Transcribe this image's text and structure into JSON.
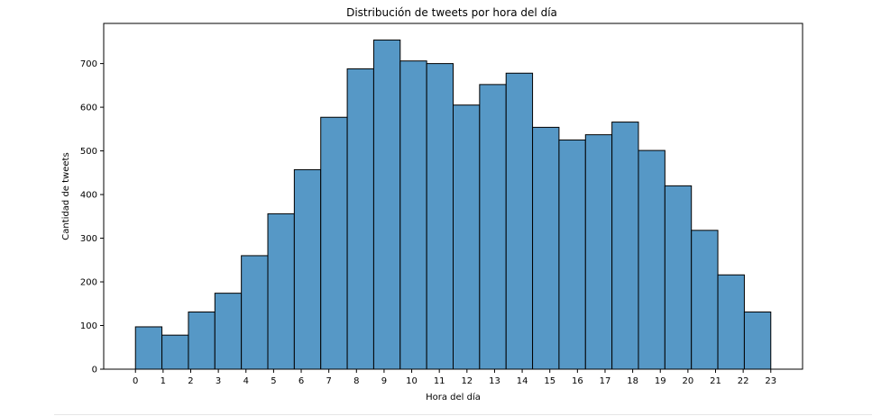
{
  "chart_data": {
    "type": "bar",
    "title": "Distribución de tweets por hora del día",
    "xlabel": "Hora del día",
    "ylabel": "Cantidad de tweets",
    "x_ticks": [
      "0",
      "1",
      "2",
      "3",
      "4",
      "5",
      "6",
      "7",
      "8",
      "9",
      "10",
      "11",
      "12",
      "13",
      "14",
      "15",
      "16",
      "17",
      "18",
      "19",
      "20",
      "21",
      "22",
      "23"
    ],
    "y_ticks": [
      "0",
      "100",
      "200",
      "300",
      "400",
      "500",
      "600",
      "700"
    ],
    "bins": [
      {
        "start": 0.0,
        "end": 0.958,
        "value": 97
      },
      {
        "start": 0.958,
        "end": 1.917,
        "value": 78
      },
      {
        "start": 1.917,
        "end": 2.875,
        "value": 131
      },
      {
        "start": 2.875,
        "end": 3.833,
        "value": 174
      },
      {
        "start": 3.833,
        "end": 4.792,
        "value": 260
      },
      {
        "start": 4.792,
        "end": 5.75,
        "value": 356
      },
      {
        "start": 5.75,
        "end": 6.708,
        "value": 457
      },
      {
        "start": 6.708,
        "end": 7.667,
        "value": 577
      },
      {
        "start": 7.667,
        "end": 8.625,
        "value": 688
      },
      {
        "start": 8.625,
        "end": 9.583,
        "value": 754
      },
      {
        "start": 9.583,
        "end": 10.542,
        "value": 706
      },
      {
        "start": 10.542,
        "end": 11.5,
        "value": 700
      },
      {
        "start": 11.5,
        "end": 12.458,
        "value": 605
      },
      {
        "start": 12.458,
        "end": 13.417,
        "value": 652
      },
      {
        "start": 13.417,
        "end": 14.375,
        "value": 678
      },
      {
        "start": 14.375,
        "end": 15.333,
        "value": 554
      },
      {
        "start": 15.333,
        "end": 16.292,
        "value": 525
      },
      {
        "start": 16.292,
        "end": 17.25,
        "value": 537
      },
      {
        "start": 17.25,
        "end": 18.208,
        "value": 566
      },
      {
        "start": 18.208,
        "end": 19.167,
        "value": 501
      },
      {
        "start": 19.167,
        "end": 20.125,
        "value": 420
      },
      {
        "start": 20.125,
        "end": 21.083,
        "value": 318
      },
      {
        "start": 21.083,
        "end": 22.042,
        "value": 216
      },
      {
        "start": 22.042,
        "end": 23.0,
        "value": 131
      }
    ],
    "xlim": [
      -1.15,
      24.15
    ],
    "ylim": [
      0,
      792
    ],
    "grid": false,
    "bar_color": "#5698c6",
    "edge_color": "#000000"
  }
}
